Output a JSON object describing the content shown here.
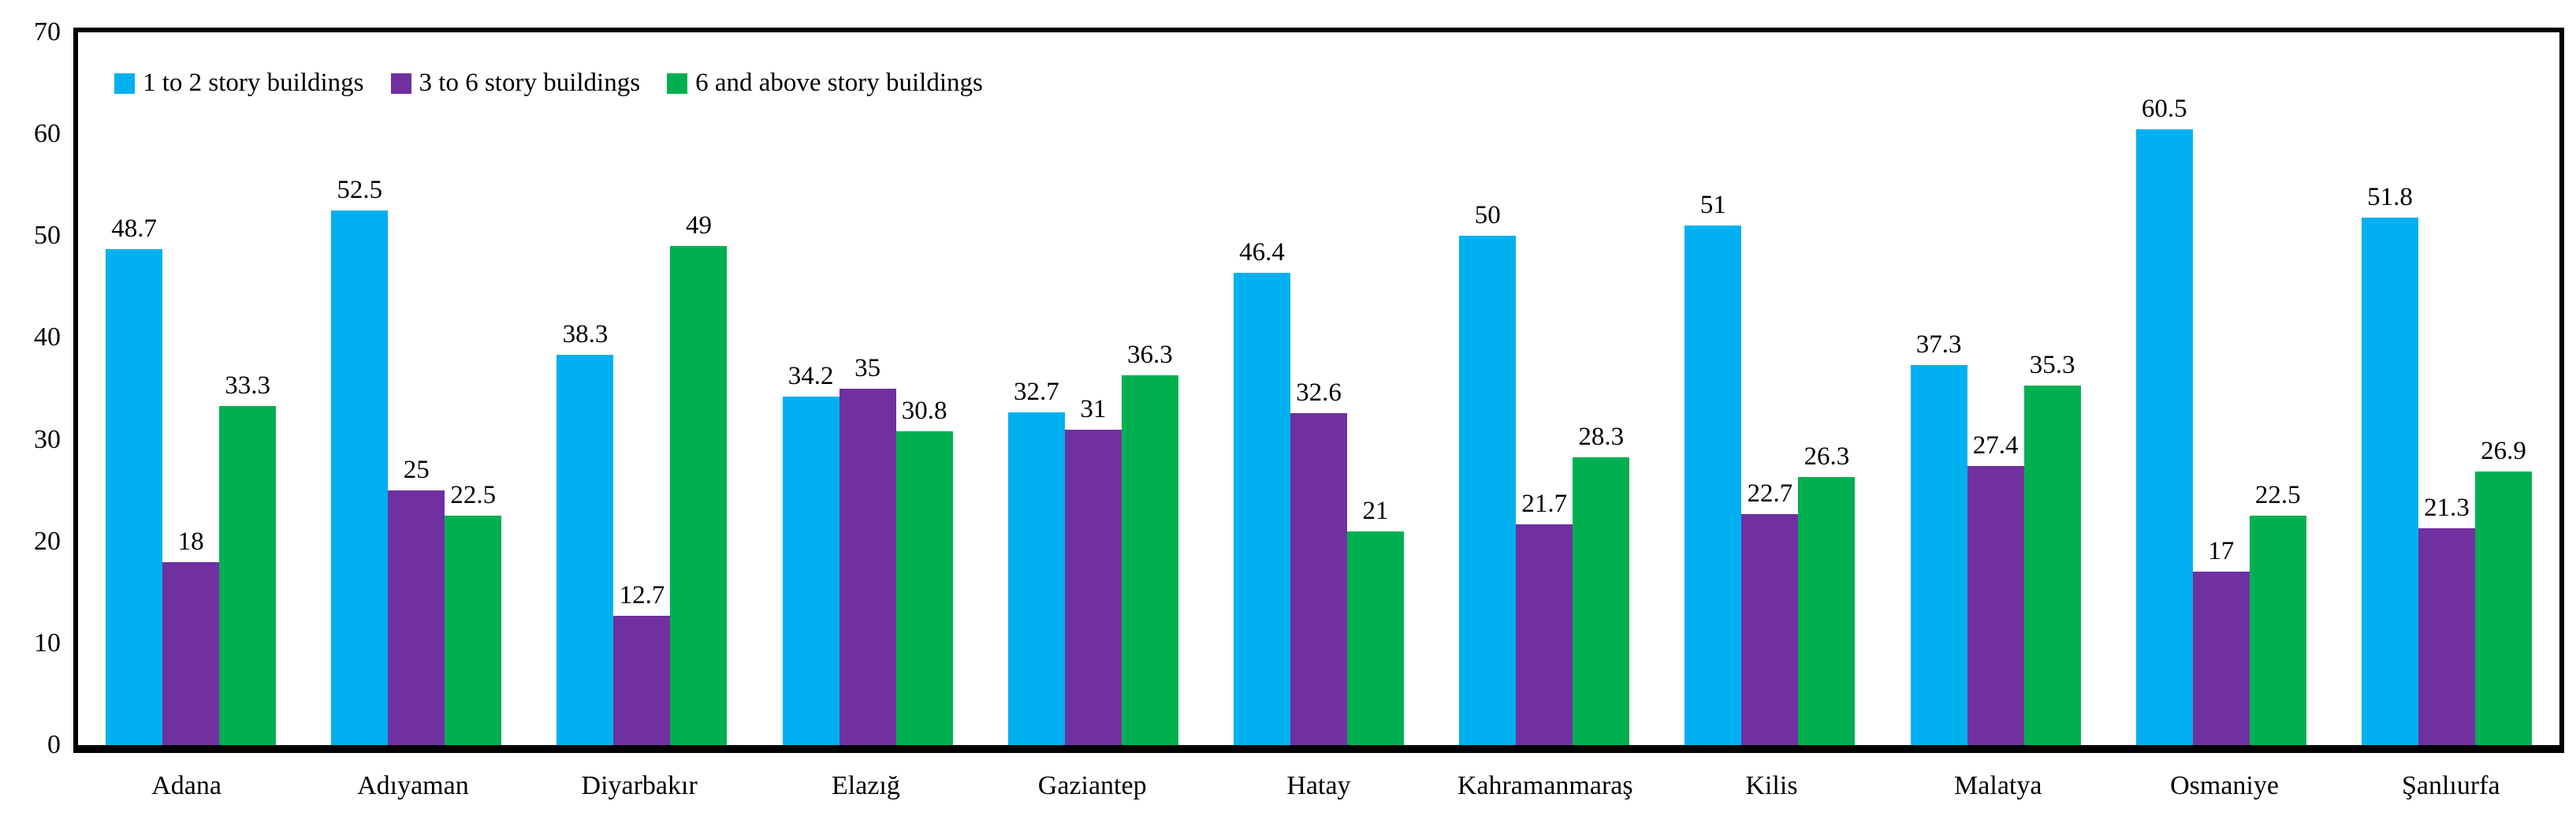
{
  "chart_data": {
    "type": "bar",
    "title": "",
    "xlabel": "",
    "ylabel": "",
    "ylim": [
      0,
      70
    ],
    "yticks": [
      0,
      10,
      20,
      30,
      40,
      50,
      60,
      70
    ],
    "grid": false,
    "data_labels": true,
    "legend_position": "top-left-inside",
    "axis_color": "#000000",
    "background_color": "#ffffff",
    "categories": [
      "Adana",
      "Adıyaman",
      "Diyarbakır",
      "Elazığ",
      "Gaziantep",
      "Hatay",
      "Kahramanmaraş",
      "Kilis",
      "Malatya",
      "Osmaniye",
      "Şanlıurfa"
    ],
    "series": [
      {
        "name": "1 to 2 story buildings",
        "color": "#00B0F0",
        "values": [
          48.7,
          52.5,
          38.3,
          34.2,
          32.7,
          46.4,
          50,
          51,
          37.3,
          60.5,
          51.8
        ]
      },
      {
        "name": "3 to 6 story buildings",
        "color": "#7030A0",
        "values": [
          18,
          25,
          12.7,
          35,
          31,
          32.6,
          21.7,
          22.7,
          27.4,
          17,
          21.3
        ]
      },
      {
        "name": "6 and above story buildings",
        "color": "#00B050",
        "values": [
          33.3,
          22.5,
          49,
          30.8,
          36.3,
          21,
          28.3,
          26.3,
          35.3,
          22.5,
          26.9
        ]
      }
    ]
  }
}
